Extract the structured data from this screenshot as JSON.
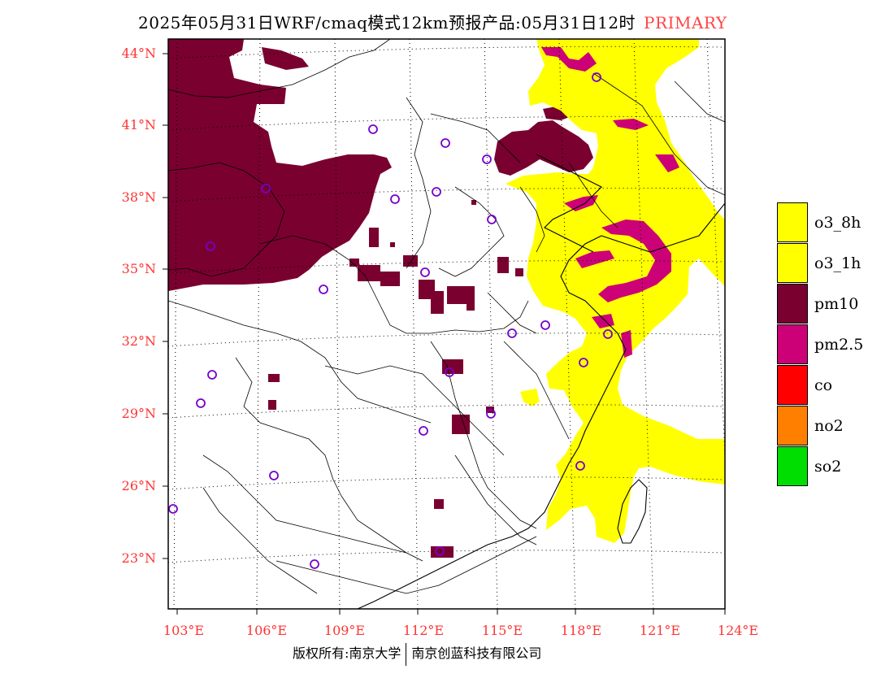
{
  "title": {
    "main": "2025年05月31日WRF/cmaq模式12km预报产品:05月31日12时",
    "tag": "PRIMARY"
  },
  "axes": {
    "lat_labels": [
      "44°N",
      "41°N",
      "38°N",
      "35°N",
      "32°N",
      "29°N",
      "26°N",
      "23°N"
    ],
    "lon_labels": [
      "103°E",
      "106°E",
      "109°E",
      "112°E",
      "115°E",
      "118°E",
      "121°E",
      "124°E"
    ]
  },
  "legend": [
    {
      "label": "o3_8h",
      "color": "#ffff00"
    },
    {
      "label": "o3_1h",
      "color": "#ffff00"
    },
    {
      "label": "pm10",
      "color": "#7a0030"
    },
    {
      "label": "pm2.5",
      "color": "#cc0077"
    },
    {
      "label": "co",
      "color": "#ff0000"
    },
    {
      "label": "no2",
      "color": "#ff8000"
    },
    {
      "label": "so2",
      "color": "#00dd00"
    }
  ],
  "footer": {
    "left": "版权所有:南京大学",
    "right": "南京创蓝科技有限公司"
  },
  "map_colors": {
    "o3": "#ffff00",
    "pm10": "#7a0030",
    "pm25": "#cc0077",
    "city_marker": "#7700cc",
    "label": "#ff3333"
  }
}
